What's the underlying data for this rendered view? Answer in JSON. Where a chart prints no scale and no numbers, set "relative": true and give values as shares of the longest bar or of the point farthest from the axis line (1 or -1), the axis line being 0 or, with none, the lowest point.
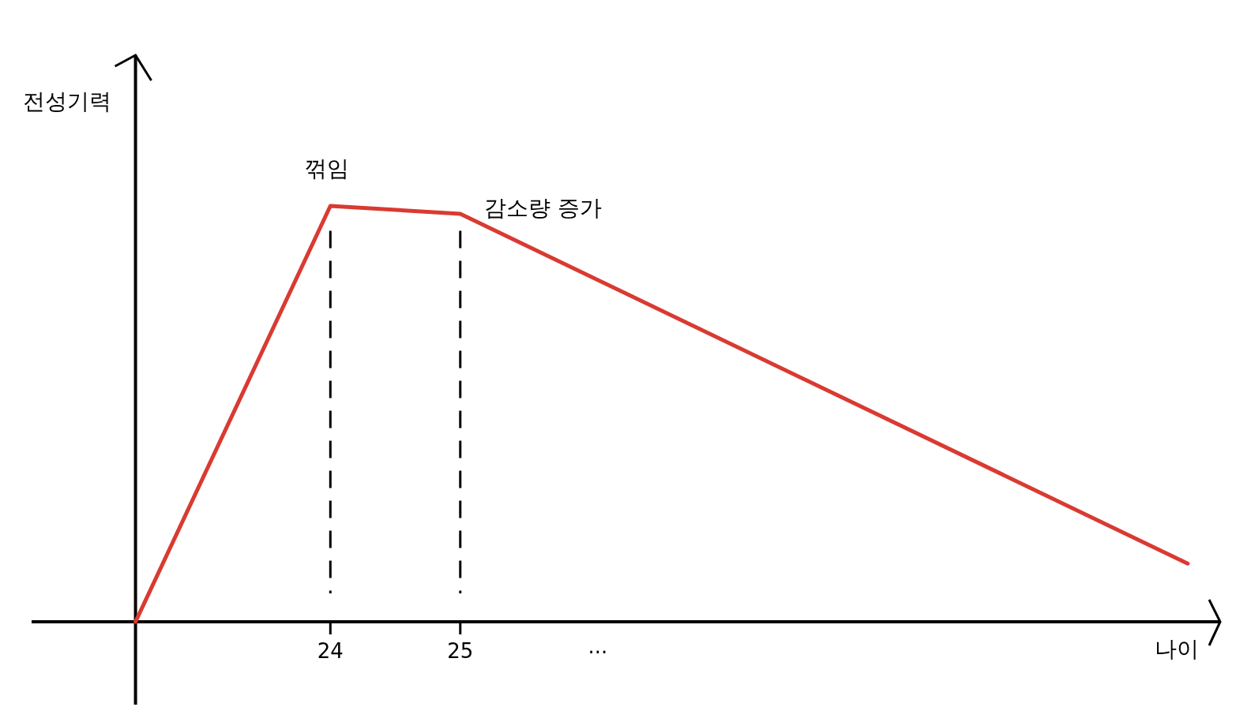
{
  "chart_data": {
    "type": "line",
    "relative": true,
    "ylabel": "전성기력",
    "xlabel": "나이",
    "xlim": [
      21.7,
      30.85
    ],
    "xticks": [
      24,
      25
    ],
    "tick_labels": "x",
    "series": [
      {
        "color": "#d93a32",
        "x": [
          22.5,
          24,
          25,
          30.6
        ],
        "values": [
          0,
          1,
          0.981,
          0.14
        ]
      }
    ],
    "ref_lines": [
      {
        "axis": "x",
        "value": 22.5,
        "line_style": "solid",
        "color": "#000000"
      },
      {
        "axis": "x",
        "value": 24,
        "line_style": "dashed",
        "color": "#000000"
      },
      {
        "axis": "x",
        "value": 25,
        "line_style": "dashed",
        "color": "#000000"
      }
    ],
    "annotations": [
      {
        "text": "꺾임",
        "x": 24,
        "y": 1
      },
      {
        "text": "감소량 증가",
        "x": 25,
        "y": 0.981
      },
      "..."
    ]
  }
}
